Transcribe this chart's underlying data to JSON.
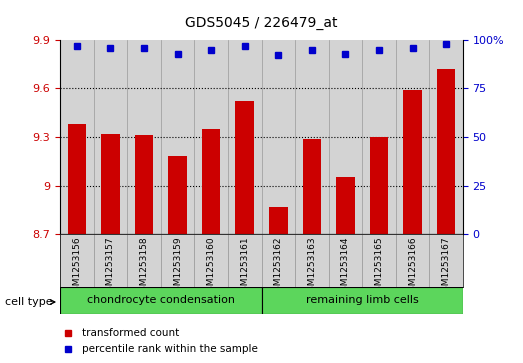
{
  "title": "GDS5045 / 226479_at",
  "samples": [
    "GSM1253156",
    "GSM1253157",
    "GSM1253158",
    "GSM1253159",
    "GSM1253160",
    "GSM1253161",
    "GSM1253162",
    "GSM1253163",
    "GSM1253164",
    "GSM1253165",
    "GSM1253166",
    "GSM1253167"
  ],
  "transformed_count": [
    9.38,
    9.32,
    9.31,
    9.18,
    9.35,
    9.52,
    8.87,
    9.29,
    9.05,
    9.3,
    9.59,
    9.72
  ],
  "percentile_rank": [
    97,
    96,
    96,
    93,
    95,
    97,
    92,
    95,
    93,
    95,
    96,
    98
  ],
  "ylim_left": [
    8.7,
    9.9
  ],
  "ylim_right": [
    0,
    100
  ],
  "yticks_left": [
    8.7,
    9.0,
    9.3,
    9.6,
    9.9
  ],
  "yticks_right": [
    0,
    25,
    50,
    75,
    100
  ],
  "groups": [
    {
      "label": "chondrocyte condensation",
      "start": 0,
      "end": 5,
      "color": "#5CD65C"
    },
    {
      "label": "remaining limb cells",
      "start": 6,
      "end": 11,
      "color": "#5CD65C"
    }
  ],
  "cell_type_label": "cell type",
  "bar_color": "#CC0000",
  "dot_color": "#0000CC",
  "bar_width": 0.55,
  "legend_items": [
    {
      "label": "transformed count",
      "color": "#CC0000"
    },
    {
      "label": "percentile rank within the sample",
      "color": "#0000CC"
    }
  ],
  "grid_color": "#000000",
  "grid_style": "dotted",
  "tick_label_color_left": "#CC0000",
  "tick_label_color_right": "#0000CC",
  "bg_color": "#FFFFFF",
  "bar_bg_color": "#D3D3D3"
}
